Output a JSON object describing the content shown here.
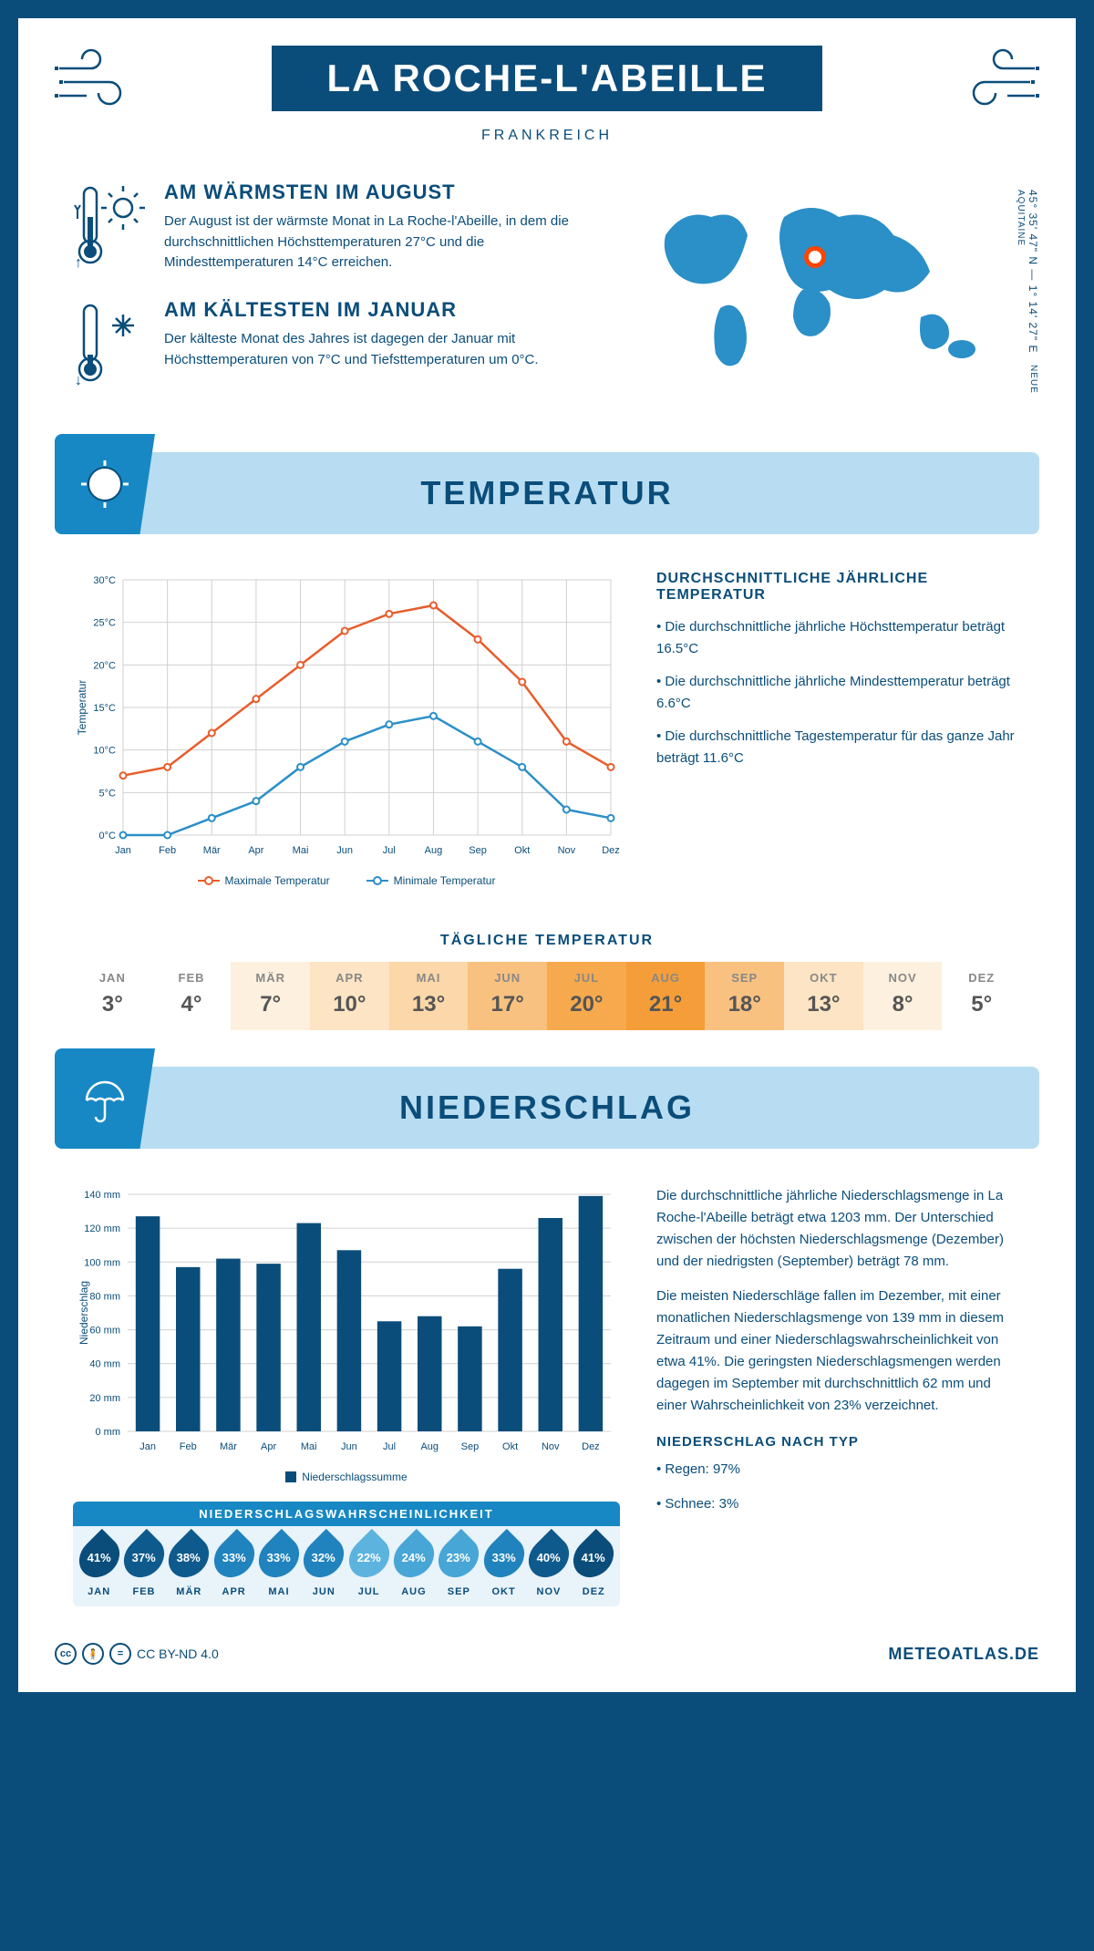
{
  "header": {
    "title": "LA ROCHE-L'ABEILLE",
    "country": "FRANKREICH",
    "coords": "45° 35' 47\" N — 1° 14' 27\" E",
    "region": "NEUE AQUITAINE"
  },
  "intro": {
    "warm": {
      "title": "AM WÄRMSTEN IM AUGUST",
      "text": "Der August ist der wärmste Monat in La Roche-l'Abeille, in dem die durchschnittlichen Höchsttemperaturen 27°C und die Mindesttemperaturen 14°C erreichen."
    },
    "cold": {
      "title": "AM KÄLTESTEN IM JANUAR",
      "text": "Der kälteste Monat des Jahres ist dagegen der Januar mit Höchsttemperaturen von 7°C und Tiefsttemperaturen um 0°C."
    }
  },
  "sections": {
    "temperature": "TEMPERATUR",
    "precipitation": "NIEDERSCHLAG"
  },
  "temp_chart": {
    "type": "line",
    "months": [
      "Jan",
      "Feb",
      "Mär",
      "Apr",
      "Mai",
      "Jun",
      "Jul",
      "Aug",
      "Sep",
      "Okt",
      "Nov",
      "Dez"
    ],
    "max_series": [
      7,
      8,
      12,
      16,
      20,
      24,
      26,
      27,
      23,
      18,
      11,
      8
    ],
    "min_series": [
      0,
      0,
      2,
      4,
      8,
      11,
      13,
      14,
      11,
      8,
      3,
      2
    ],
    "max_color": "#e85d2c",
    "min_color": "#2b8fc8",
    "ylim": [
      0,
      30
    ],
    "ytick_step": 5,
    "y_axis_title": "Temperatur",
    "legend_max": "Maximale Temperatur",
    "legend_min": "Minimale Temperatur",
    "grid_color": "#d0d0d0",
    "background": "#ffffff"
  },
  "temp_info": {
    "heading": "DURCHSCHNITTLICHE JÄHRLICHE TEMPERATUR",
    "b1": "• Die durchschnittliche jährliche Höchsttemperatur beträgt 16.5°C",
    "b2": "• Die durchschnittliche jährliche Mindesttemperatur beträgt 6.6°C",
    "b3": "• Die durchschnittliche Tagestemperatur für das ganze Jahr beträgt 11.6°C"
  },
  "daily": {
    "title": "TÄGLICHE TEMPERATUR",
    "months": [
      "JAN",
      "FEB",
      "MÄR",
      "APR",
      "MAI",
      "JUN",
      "JUL",
      "AUG",
      "SEP",
      "OKT",
      "NOV",
      "DEZ"
    ],
    "values": [
      "3°",
      "4°",
      "7°",
      "10°",
      "13°",
      "17°",
      "20°",
      "21°",
      "18°",
      "13°",
      "8°",
      "5°"
    ],
    "colors": [
      "#ffffff",
      "#ffffff",
      "#fdf0de",
      "#fce4c4",
      "#fbd7a9",
      "#f9c180",
      "#f7a94e",
      "#f59e39",
      "#f9c180",
      "#fce4c4",
      "#fdf0de",
      "#ffffff"
    ]
  },
  "precip_chart": {
    "type": "bar",
    "months": [
      "Jan",
      "Feb",
      "Mär",
      "Apr",
      "Mai",
      "Jun",
      "Jul",
      "Aug",
      "Sep",
      "Okt",
      "Nov",
      "Dez"
    ],
    "values": [
      127,
      97,
      102,
      99,
      123,
      107,
      65,
      68,
      62,
      96,
      126,
      139
    ],
    "bar_color": "#0a4d7a",
    "ylim": [
      0,
      140
    ],
    "ytick_step": 20,
    "y_axis_title": "Niederschlag",
    "legend": "Niederschlagssumme",
    "grid_color": "#d0d0d0"
  },
  "precip_text": {
    "p1": "Die durchschnittliche jährliche Niederschlagsmenge in La Roche-l'Abeille beträgt etwa 1203 mm. Der Unterschied zwischen der höchsten Niederschlagsmenge (Dezember) und der niedrigsten (September) beträgt 78 mm.",
    "p2": "Die meisten Niederschläge fallen im Dezember, mit einer monatlichen Niederschlagsmenge von 139 mm in diesem Zeitraum und einer Niederschlagswahrscheinlichkeit von etwa 41%. Die geringsten Niederschlagsmengen werden dagegen im September mit durchschnittlich 62 mm und einer Wahrscheinlichkeit von 23% verzeichnet.",
    "type_heading": "NIEDERSCHLAG NACH TYP",
    "type1": "• Regen: 97%",
    "type2": "• Schnee: 3%"
  },
  "probability": {
    "title": "NIEDERSCHLAGSWAHRSCHEINLICHKEIT",
    "months": [
      "JAN",
      "FEB",
      "MÄR",
      "APR",
      "MAI",
      "JUN",
      "JUL",
      "AUG",
      "SEP",
      "OKT",
      "NOV",
      "DEZ"
    ],
    "pct": [
      "41%",
      "37%",
      "38%",
      "33%",
      "33%",
      "32%",
      "22%",
      "24%",
      "23%",
      "33%",
      "40%",
      "41%"
    ],
    "colors": [
      "#0a4d7a",
      "#0e5a8c",
      "#0e5a8c",
      "#2183bd",
      "#2183bd",
      "#2183bd",
      "#5cb3de",
      "#48a6d6",
      "#48a6d6",
      "#2183bd",
      "#0e5a8c",
      "#0a4d7a"
    ]
  },
  "footer": {
    "license": "CC BY-ND 4.0",
    "site": "METEOATLAS.DE"
  }
}
